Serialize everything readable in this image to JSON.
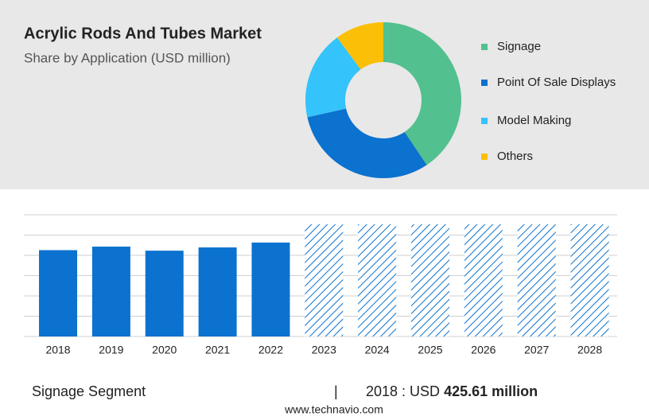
{
  "chart_data": [
    {
      "type": "donut",
      "title": "Acrylic Rods And Tubes Market",
      "subtitle": "Share by Application (USD million)",
      "categories": [
        "Signage",
        "Point Of Sale Displays",
        "Model Making",
        "Others"
      ],
      "values": [
        40.6,
        30.9,
        18.4,
        10.1
      ],
      "colors": [
        "#52c08f",
        "#0b72cf",
        "#34c3fa",
        "#fbbf07"
      ],
      "legend": "right"
    },
    {
      "type": "bar",
      "categories": [
        "2018",
        "2019",
        "2020",
        "2021",
        "2022",
        "2023",
        "2024",
        "2025",
        "2026",
        "2027",
        "2028"
      ],
      "series": [
        {
          "color": "#0b72cf",
          "values": [
            425.61,
            443,
            423,
            439,
            463,
            null,
            null,
            null,
            null,
            null,
            null
          ]
        },
        {
          "color": "#0b72cf",
          "pattern": "hatch",
          "values": [
            null,
            null,
            null,
            null,
            null,
            553,
            553,
            553,
            553,
            553,
            553
          ]
        }
      ],
      "ylim": [
        0,
        600
      ],
      "yticks": [
        0,
        100,
        200,
        300,
        400,
        500,
        600
      ],
      "grid": true
    }
  ],
  "footer": {
    "segment": "Signage Segment",
    "separator": "|",
    "year_label": "2018 : USD ",
    "value_text": "425.61 million",
    "website": "www.technavio.com"
  }
}
